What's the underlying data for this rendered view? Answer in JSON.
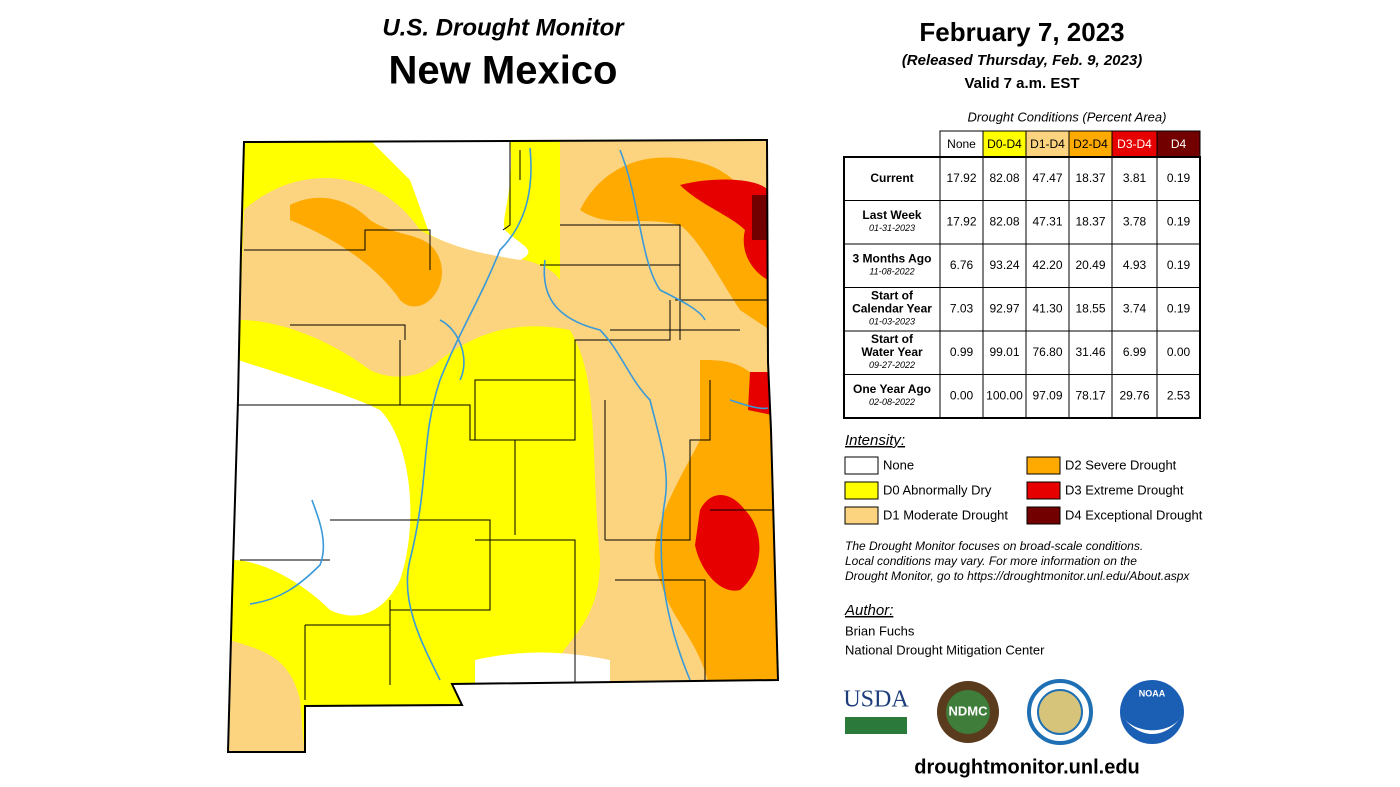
{
  "header": {
    "series": "U.S. Drought Monitor",
    "title": "New Mexico",
    "date": "February 7, 2023",
    "released": "(Released Thursday, Feb. 9, 2023)",
    "valid": "Valid 7 a.m. EST"
  },
  "table": {
    "caption": "Drought Conditions (Percent Area)",
    "columns": [
      {
        "label": "None",
        "color": "#ffffff",
        "text": "#000000"
      },
      {
        "label": "D0-D4",
        "color": "#ffff00",
        "text": "#000000"
      },
      {
        "label": "D1-D4",
        "color": "#fcd37f",
        "text": "#000000"
      },
      {
        "label": "D2-D4",
        "color": "#ffaa00",
        "text": "#000000"
      },
      {
        "label": "D3-D4",
        "color": "#e60000",
        "text": "#ffffff"
      },
      {
        "label": "D4",
        "color": "#730000",
        "text": "#ffffff"
      }
    ],
    "rows": [
      {
        "label": [
          "Current"
        ],
        "values": [
          "17.92",
          "82.08",
          "47.47",
          "18.37",
          "3.81",
          "0.19"
        ]
      },
      {
        "label": [
          "Last Week"
        ],
        "date": "01-31-2023",
        "values": [
          "17.92",
          "82.08",
          "47.31",
          "18.37",
          "3.78",
          "0.19"
        ]
      },
      {
        "label": [
          "3 Months Ago"
        ],
        "date": "11-08-2022",
        "values": [
          "6.76",
          "93.24",
          "42.20",
          "20.49",
          "4.93",
          "0.19"
        ]
      },
      {
        "label": [
          "Start of",
          "Calendar Year"
        ],
        "date": "01-03-2023",
        "values": [
          "7.03",
          "92.97",
          "41.30",
          "18.55",
          "3.74",
          "0.19"
        ]
      },
      {
        "label": [
          "Start of",
          "Water Year"
        ],
        "date": "09-27-2022",
        "values": [
          "0.99",
          "99.01",
          "76.80",
          "31.46",
          "6.99",
          "0.00"
        ]
      },
      {
        "label": [
          "One Year Ago"
        ],
        "date": "02-08-2022",
        "values": [
          "0.00",
          "100.00",
          "97.09",
          "78.17",
          "29.76",
          "2.53"
        ]
      }
    ]
  },
  "legend": {
    "title": "Intensity:",
    "items": [
      {
        "label": "None",
        "color": "#ffffff"
      },
      {
        "label": "D0 Abnormally Dry",
        "color": "#ffff00"
      },
      {
        "label": "D1 Moderate Drought",
        "color": "#fcd37f"
      },
      {
        "label": "D2 Severe Drought",
        "color": "#ffaa00"
      },
      {
        "label": "D3 Extreme Drought",
        "color": "#e60000"
      },
      {
        "label": "D4 Exceptional Drought",
        "color": "#730000"
      }
    ]
  },
  "note": [
    "The Drought Monitor focuses on broad-scale conditions.",
    "Local conditions may vary. For more information on the",
    "Drought Monitor, go to https://droughtmonitor.unl.edu/About.aspx"
  ],
  "author": {
    "title": "Author:",
    "name": "Brian Fuchs",
    "org": "National Drought Mitigation Center"
  },
  "logos": [
    "USDA",
    "NDMC",
    "NOAA"
  ],
  "url": "droughtmonitor.unl.edu"
}
